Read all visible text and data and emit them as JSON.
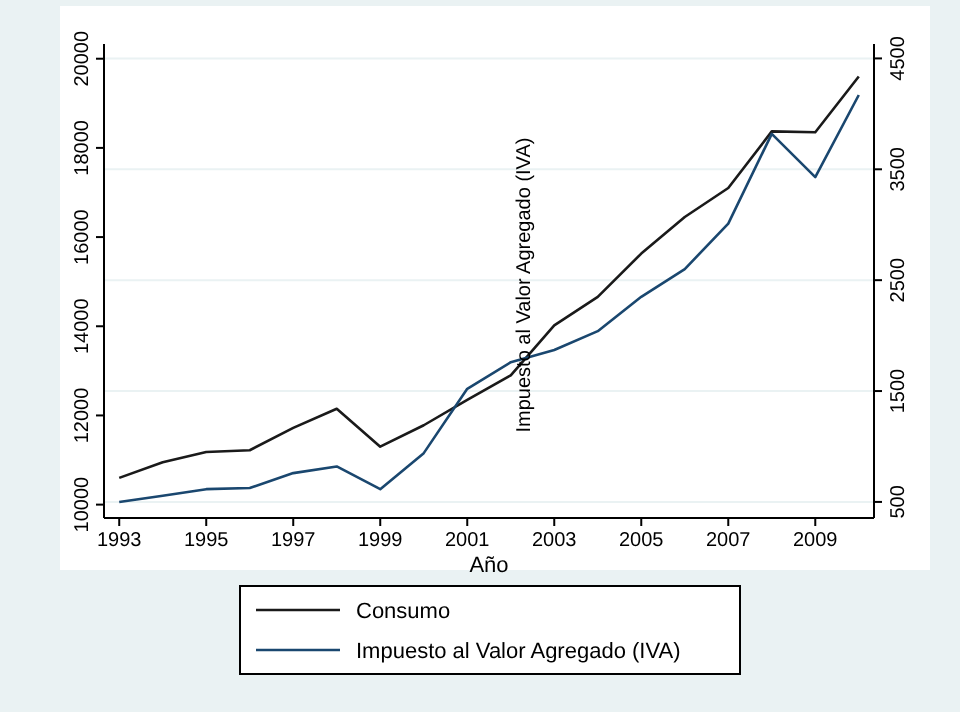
{
  "chart_data": {
    "type": "line",
    "xlabel": "Año",
    "y2label": "Impuesto al Valor Agregado (IVA)",
    "x": [
      1993,
      1994,
      1995,
      1996,
      1997,
      1998,
      1999,
      2000,
      2001,
      2002,
      2003,
      2004,
      2005,
      2006,
      2007,
      2008,
      2009,
      2010
    ],
    "series": [
      {
        "name": "Consumo",
        "color": "#1a1a1a",
        "values": [
          10600,
          10950,
          11180,
          11220,
          11720,
          12150,
          11300,
          11780,
          12350,
          12900,
          14020,
          14660,
          15630,
          16450,
          17100,
          18370,
          18350,
          19600
        ]
      },
      {
        "name": "Impuesto al Valor Agregado (IVA)",
        "color": "#1a476f",
        "axis": "y2",
        "values": [
          500,
          555,
          615,
          625,
          760,
          820,
          615,
          940,
          1520,
          1760,
          1870,
          2040,
          2350,
          2600,
          3010,
          3820,
          3430,
          4170
        ]
      }
    ],
    "xlim": [
      1992.65,
      2010.35
    ],
    "xticks": [
      1993,
      1995,
      1997,
      1999,
      2001,
      2003,
      2005,
      2007,
      2009
    ],
    "ylim": [
      9700,
      20330
    ],
    "yticks": [
      10000,
      12000,
      14000,
      16000,
      18000,
      20000
    ],
    "y2lim": [
      355,
      4630
    ],
    "y2ticks": [
      500,
      1500,
      2500,
      3500,
      4500
    ],
    "grid": "y2",
    "legend": "bottom",
    "marker": "none",
    "line_style": "solid"
  }
}
